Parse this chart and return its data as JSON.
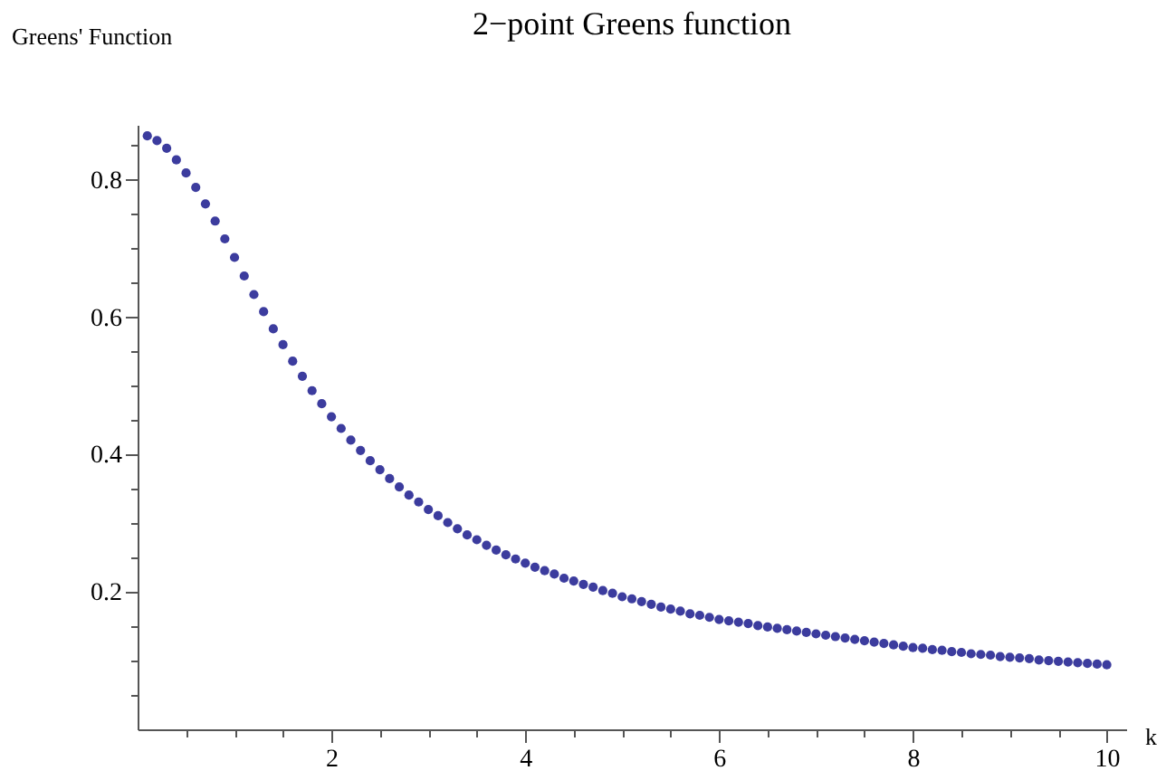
{
  "chart_data": {
    "type": "scatter",
    "title": "2−point Greens function",
    "xlabel": "k",
    "ylabel": "Greens' Function",
    "x": [
      0.1,
      0.2,
      0.3,
      0.4,
      0.5,
      0.6,
      0.7,
      0.8,
      0.9,
      1.0,
      1.1,
      1.2,
      1.3,
      1.4,
      1.5,
      1.6,
      1.7,
      1.8,
      1.9,
      2.0,
      2.1,
      2.2,
      2.3,
      2.4,
      2.5,
      2.6,
      2.7,
      2.8,
      2.9,
      3.0,
      3.1,
      3.2,
      3.3,
      3.4,
      3.5,
      3.6,
      3.7,
      3.8,
      3.9,
      4.0,
      4.1,
      4.2,
      4.3,
      4.4,
      4.5,
      4.6,
      4.7,
      4.8,
      4.9,
      5.0,
      5.1,
      5.2,
      5.3,
      5.4,
      5.5,
      5.6,
      5.7,
      5.8,
      5.9,
      6.0,
      6.1,
      6.2,
      6.3,
      6.4,
      6.5,
      6.6,
      6.7,
      6.8,
      6.9,
      7.0,
      7.1,
      7.2,
      7.3,
      7.4,
      7.5,
      7.6,
      7.7,
      7.8,
      7.9,
      8.0,
      8.1,
      8.2,
      8.3,
      8.4,
      8.5,
      8.6,
      8.7,
      8.8,
      8.9,
      9.0,
      9.1,
      9.2,
      9.3,
      9.4,
      9.5,
      9.6,
      9.7,
      9.8,
      9.9,
      10.0
    ],
    "series": [
      {
        "color": "#3c3c9e",
        "values": [
          0.864,
          0.857,
          0.846,
          0.829,
          0.81,
          0.789,
          0.765,
          0.74,
          0.714,
          0.687,
          0.66,
          0.633,
          0.608,
          0.583,
          0.56,
          0.536,
          0.514,
          0.493,
          0.474,
          0.455,
          0.438,
          0.421,
          0.406,
          0.391,
          0.378,
          0.365,
          0.353,
          0.341,
          0.331,
          0.32,
          0.311,
          0.301,
          0.292,
          0.283,
          0.276,
          0.268,
          0.261,
          0.254,
          0.248,
          0.242,
          0.236,
          0.231,
          0.226,
          0.22,
          0.216,
          0.211,
          0.207,
          0.202,
          0.198,
          0.193,
          0.19,
          0.186,
          0.182,
          0.178,
          0.175,
          0.172,
          0.168,
          0.166,
          0.163,
          0.16,
          0.158,
          0.156,
          0.154,
          0.151,
          0.149,
          0.147,
          0.145,
          0.143,
          0.141,
          0.139,
          0.137,
          0.135,
          0.133,
          0.131,
          0.129,
          0.127,
          0.125,
          0.123,
          0.121,
          0.119,
          0.118,
          0.116,
          0.115,
          0.113,
          0.112,
          0.11,
          0.109,
          0.108,
          0.106,
          0.105,
          0.104,
          0.103,
          0.101,
          0.1,
          0.099,
          0.098,
          0.097,
          0.096,
          0.095,
          0.094
        ]
      }
    ],
    "xlim": [
      0,
      10.2
    ],
    "ylim": [
      0,
      0.88
    ],
    "xticks": [
      {
        "value": 0.5,
        "label": null
      },
      {
        "value": 1,
        "label": null
      },
      {
        "value": 1.5,
        "label": null
      },
      2,
      {
        "value": 2.5,
        "label": null
      },
      {
        "value": 3,
        "label": null
      },
      {
        "value": 3.5,
        "label": null
      },
      4,
      {
        "value": 4.5,
        "label": null
      },
      {
        "value": 5,
        "label": null
      },
      {
        "value": 5.5,
        "label": null
      },
      6,
      {
        "value": 6.5,
        "label": null
      },
      {
        "value": 7,
        "label": null
      },
      {
        "value": 7.5,
        "label": null
      },
      8,
      {
        "value": 8.5,
        "label": null
      },
      {
        "value": 9,
        "label": null
      },
      {
        "value": 9.5,
        "label": null
      },
      10
    ],
    "yticks": [
      {
        "value": 0.05,
        "label": null
      },
      {
        "value": 0.1,
        "label": null
      },
      {
        "value": 0.15,
        "label": null
      },
      {
        "value": 0.2,
        "label": "0.2"
      },
      {
        "value": 0.25,
        "label": null
      },
      {
        "value": 0.3,
        "label": null
      },
      {
        "value": 0.35,
        "label": null
      },
      {
        "value": 0.4,
        "label": "0.4"
      },
      {
        "value": 0.45,
        "label": null
      },
      {
        "value": 0.5,
        "label": null
      },
      {
        "value": 0.55,
        "label": null
      },
      {
        "value": 0.6,
        "label": "0.6"
      },
      {
        "value": 0.65,
        "label": null
      },
      {
        "value": 0.7,
        "label": null
      },
      {
        "value": 0.75,
        "label": null
      },
      {
        "value": 0.8,
        "label": "0.8"
      },
      {
        "value": 0.85,
        "label": null
      }
    ],
    "marker": "circle",
    "grid": false
  }
}
